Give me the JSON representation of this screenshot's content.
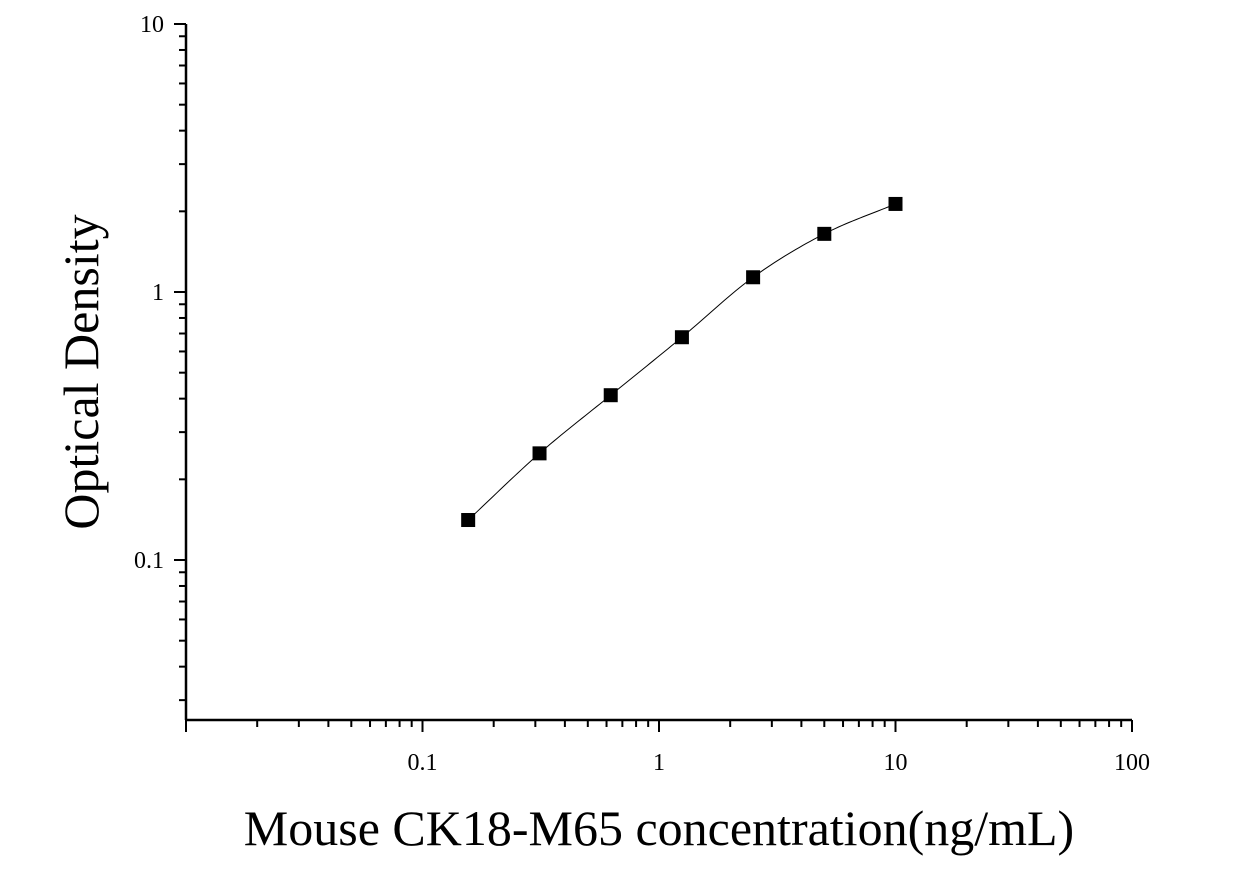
{
  "chart_data": {
    "type": "scatter",
    "title": "",
    "xlabel": "Mouse CK18-M65 concentration(ng/mL)",
    "ylabel": "Optical Density",
    "x_scale": "log",
    "y_scale": "log",
    "xlim": [
      0.01,
      100
    ],
    "ylim": [
      0.025,
      10
    ],
    "x_tick_labels": [
      "0.1",
      "1",
      "10",
      "100"
    ],
    "x_tick_values": [
      0.1,
      1,
      10,
      100
    ],
    "y_tick_labels": [
      "0.1",
      "1",
      "10"
    ],
    "y_tick_values": [
      0.1,
      1,
      10
    ],
    "grid": false,
    "legend": false,
    "series": [
      {
        "marker": "square",
        "color": "#000000",
        "points": [
          {
            "x": 0.156,
            "y": 0.141
          },
          {
            "x": 0.3125,
            "y": 0.25
          },
          {
            "x": 0.625,
            "y": 0.412
          },
          {
            "x": 1.25,
            "y": 0.678
          },
          {
            "x": 2.5,
            "y": 1.135
          },
          {
            "x": 5,
            "y": 1.648
          },
          {
            "x": 10,
            "y": 2.131
          }
        ]
      }
    ],
    "fit_curve": {
      "type": "line",
      "color": "#000000",
      "x_range": [
        0.156,
        10
      ]
    }
  }
}
